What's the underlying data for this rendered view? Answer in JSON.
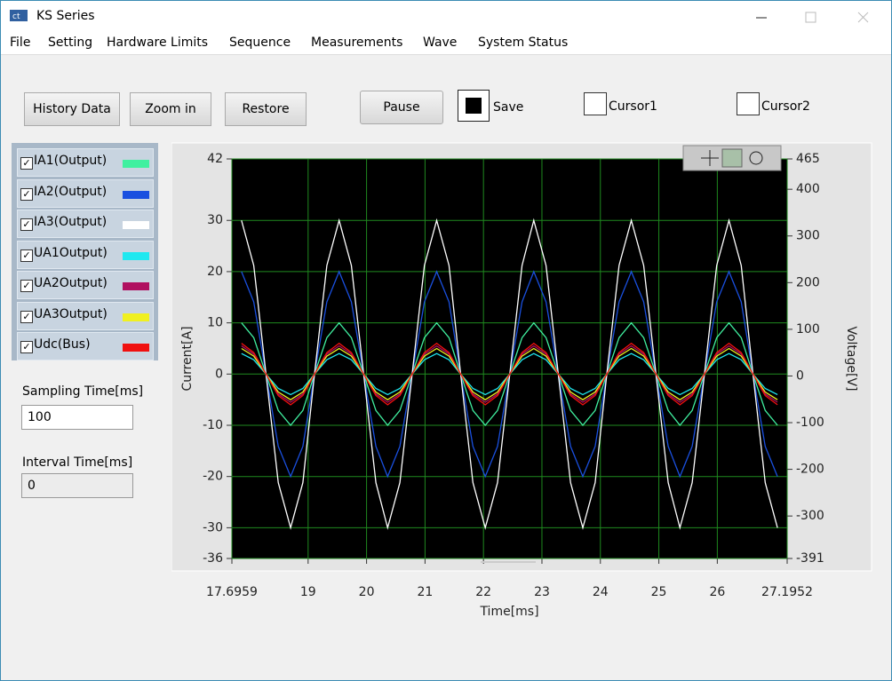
{
  "window": {
    "title": "KS Series"
  },
  "menu": [
    "File",
    "Setting",
    "Hardware Limits",
    "Sequence",
    "Measurements",
    "Wave",
    "System Status"
  ],
  "buttons": [
    "History Data",
    "Zoom in",
    "Restore",
    "Pause"
  ],
  "checkboxes": [
    {
      "label": "Save",
      "checked": true
    },
    {
      "label": "Cursor1",
      "checked": false
    },
    {
      "label": "Cursor2",
      "checked": false
    }
  ],
  "fields": [
    {
      "label": "Sampling Time[ms]",
      "value": "100"
    },
    {
      "label": "Interval Time[ms]",
      "value": "0"
    }
  ],
  "chart_data": {
    "type": "line",
    "x_label": "Time[ms]",
    "y_label": "Current[A]",
    "y2_label": "Voltage[V]",
    "x": [
      17.86,
      18.07,
      18.28,
      18.49,
      18.7,
      18.91,
      19.11,
      19.32,
      19.53,
      19.74,
      19.95,
      20.16,
      20.36,
      20.57,
      20.78,
      20.99,
      21.2,
      21.41,
      21.61,
      21.82,
      22.03,
      22.24,
      22.45,
      22.66,
      22.86,
      23.07,
      23.28,
      23.49,
      23.7,
      23.91,
      24.11,
      24.32,
      24.53,
      24.74,
      24.95,
      25.16,
      25.36,
      25.57,
      25.78,
      25.99,
      26.2,
      26.41,
      26.61,
      26.82,
      27.03
    ],
    "xlim": [
      17.6959,
      27.1952
    ],
    "xticks": [
      17.6959,
      19,
      20,
      21,
      22,
      23,
      24,
      25,
      26,
      27.1952
    ],
    "ylim": [
      -36,
      42
    ],
    "yticks": [
      42,
      30,
      20,
      10,
      0,
      -10,
      -20,
      -30,
      -36
    ],
    "y2lim": [
      -391,
      465
    ],
    "y2ticks": [
      465,
      400,
      300,
      200,
      100,
      0,
      -100,
      -200,
      -300,
      -391
    ],
    "grid": true,
    "background": "#000000",
    "grid_color": "#1f8a1f",
    "series": [
      {
        "name": "IA1(Output)",
        "color": "#40f0a0",
        "values": [
          10,
          7.1,
          0,
          -7.1,
          -10,
          -7.1,
          0,
          7.1,
          10,
          7.1,
          0,
          -7.1,
          -10,
          -7.1,
          0,
          7.1,
          10,
          7.1,
          0,
          -7.1,
          -10,
          -7.1,
          0,
          7.1,
          10,
          7.1,
          0,
          -7.1,
          -10,
          -7.1,
          0,
          7.1,
          10,
          7.1,
          0,
          -7.1,
          -10,
          -7.1,
          0,
          7.1,
          10,
          7.1,
          0,
          -7.1,
          -10
        ]
      },
      {
        "name": "IA2(Output)",
        "color": "#1a50e0",
        "values": [
          20,
          14.1,
          0,
          -14.1,
          -20,
          -14.1,
          0,
          14.1,
          20,
          14.1,
          0,
          -14.1,
          -20,
          -14.1,
          0,
          14.1,
          20,
          14.1,
          0,
          -14.1,
          -20,
          -14.1,
          0,
          14.1,
          20,
          14.1,
          0,
          -14.1,
          -20,
          -14.1,
          0,
          14.1,
          20,
          14.1,
          0,
          -14.1,
          -20,
          -14.1,
          0,
          14.1,
          20,
          14.1,
          0,
          -14.1,
          -20
        ]
      },
      {
        "name": "IA3(Output)",
        "color": "#ffffff",
        "values": [
          30,
          21.2,
          0,
          -21.2,
          -30,
          -21.2,
          0,
          21.2,
          30,
          21.2,
          0,
          -21.2,
          -30,
          -21.2,
          0,
          21.2,
          30,
          21.2,
          0,
          -21.2,
          -30,
          -21.2,
          0,
          21.2,
          30,
          21.2,
          0,
          -21.2,
          -30,
          -21.2,
          0,
          21.2,
          30,
          21.2,
          0,
          -21.2,
          -30,
          -21.2,
          0,
          21.2,
          30,
          21.2,
          0,
          -21.2,
          -30
        ]
      },
      {
        "name": "UA1Output)",
        "color": "#20e8f0",
        "values": [
          4,
          2.8,
          0,
          -2.8,
          -4,
          -2.8,
          0,
          2.8,
          4,
          2.8,
          0,
          -2.8,
          -4,
          -2.8,
          0,
          2.8,
          4,
          2.8,
          0,
          -2.8,
          -4,
          -2.8,
          0,
          2.8,
          4,
          2.8,
          0,
          -2.8,
          -4,
          -2.8,
          0,
          2.8,
          4,
          2.8,
          0,
          -2.8,
          -4,
          -2.8,
          0,
          2.8,
          4,
          2.8,
          0,
          -2.8,
          -4
        ]
      },
      {
        "name": "UA2Output)",
        "color": "#b01060",
        "values": [
          5.5,
          3.9,
          0,
          -3.9,
          -5.5,
          -3.9,
          0,
          3.9,
          5.5,
          3.9,
          0,
          -3.9,
          -5.5,
          -3.9,
          0,
          3.9,
          5.5,
          3.9,
          0,
          -3.9,
          -5.5,
          -3.9,
          0,
          3.9,
          5.5,
          3.9,
          0,
          -3.9,
          -5.5,
          -3.9,
          0,
          3.9,
          5.5,
          3.9,
          0,
          -3.9,
          -5.5,
          -3.9,
          0,
          3.9,
          5.5,
          3.9,
          0,
          -3.9,
          -5.5
        ]
      },
      {
        "name": "UA3Output)",
        "color": "#f0f020",
        "values": [
          5,
          3.5,
          0,
          -3.5,
          -5,
          -3.5,
          0,
          3.5,
          5,
          3.5,
          0,
          -3.5,
          -5,
          -3.5,
          0,
          3.5,
          5,
          3.5,
          0,
          -3.5,
          -5,
          -3.5,
          0,
          3.5,
          5,
          3.5,
          0,
          -3.5,
          -5,
          -3.5,
          0,
          3.5,
          5,
          3.5,
          0,
          -3.5,
          -5,
          -3.5,
          0,
          3.5,
          5,
          3.5,
          0,
          -3.5,
          -5
        ]
      },
      {
        "name": "Udc(Bus)",
        "color": "#f01010",
        "values": [
          6,
          4.2,
          0,
          -4.2,
          -6,
          -4.2,
          0,
          4.2,
          6,
          4.2,
          0,
          -4.2,
          -6,
          -4.2,
          0,
          4.2,
          6,
          4.2,
          0,
          -4.2,
          -6,
          -4.2,
          0,
          4.2,
          6,
          4.2,
          0,
          -4.2,
          -6,
          -4.2,
          0,
          4.2,
          6,
          4.2,
          0,
          -4.2,
          -6,
          -4.2,
          0,
          4.2,
          6,
          4.2,
          0,
          -4.2,
          -6
        ]
      }
    ]
  }
}
